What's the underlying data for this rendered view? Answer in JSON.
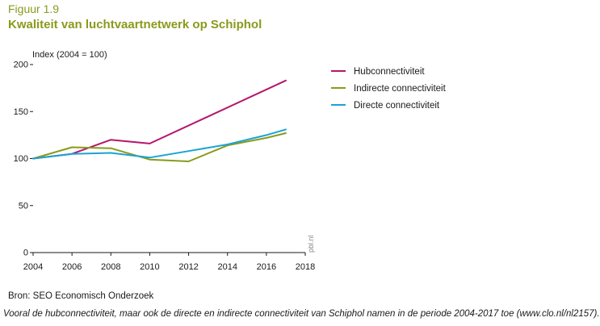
{
  "figure": {
    "number": "Figuur 1.9",
    "title": "Kwaliteit van luchtvaartnetwerk op Schiphol",
    "source": "Bron: SEO Economisch Onderzoek",
    "caption": "Vooral de hubconnectiviteit, maar ook de directe en indirecte connectiviteit van Schiphol namen in de periode 2004-2017 toe (www.clo.nl/nl2157).",
    "watermark": "pbl.nl"
  },
  "chart_data": {
    "type": "line",
    "title": "Kwaliteit van luchtvaartnetwerk op Schiphol",
    "ylabel": "Index (2004 = 100)",
    "xlabel": "",
    "xlim": [
      2004,
      2018
    ],
    "ylim": [
      0,
      200
    ],
    "xticks": [
      2004,
      2006,
      2008,
      2010,
      2012,
      2014,
      2016,
      2018
    ],
    "yticks": [
      0,
      50,
      100,
      150,
      200
    ],
    "grid": false,
    "legend_position": "top-right",
    "series": [
      {
        "name": "Hubconnectiviteit",
        "color": "#b5166b",
        "x": [
          2004,
          2006,
          2008,
          2010,
          2017
        ],
        "values": [
          100,
          105,
          120,
          116,
          183
        ]
      },
      {
        "name": "Indirecte connectiviteit",
        "color": "#8a9a1b",
        "x": [
          2004,
          2006,
          2008,
          2010,
          2012,
          2014,
          2016,
          2017
        ],
        "values": [
          100,
          112,
          111,
          99,
          97,
          114,
          122,
          127
        ]
      },
      {
        "name": "Directe connectiviteit",
        "color": "#1aa3d4",
        "x": [
          2004,
          2006,
          2008,
          2010,
          2012,
          2014,
          2016,
          2017
        ],
        "values": [
          100,
          105,
          106,
          101,
          108,
          115,
          125,
          131
        ]
      }
    ]
  }
}
